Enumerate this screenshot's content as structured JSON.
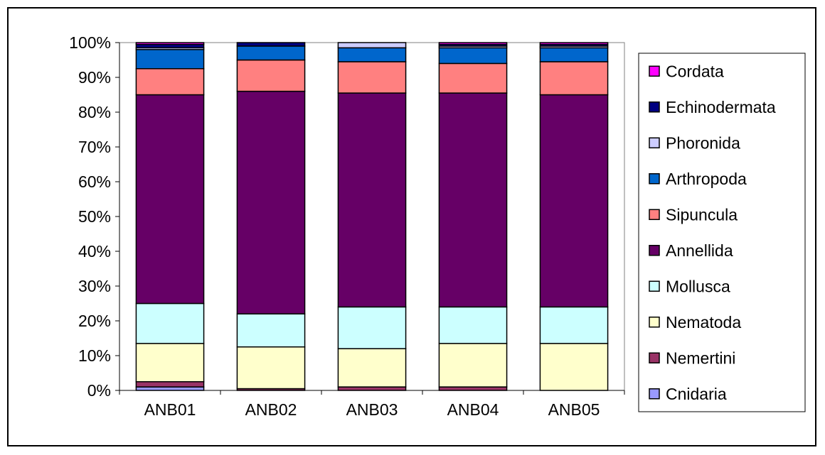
{
  "chart_data": {
    "type": "bar",
    "stacked": true,
    "percent": true,
    "categories": [
      "ANB01",
      "ANB02",
      "ANB03",
      "ANB04",
      "ANB05"
    ],
    "ylim": [
      0,
      100
    ],
    "yticks": [
      "0%",
      "10%",
      "20%",
      "30%",
      "40%",
      "50%",
      "60%",
      "70%",
      "80%",
      "90%",
      "100%"
    ],
    "grid": false,
    "legend_position": "right",
    "title": "",
    "xlabel": "",
    "ylabel": "",
    "series": [
      {
        "name": "Cnidaria",
        "color": "#9999FF",
        "values": [
          1.0,
          0.0,
          0.0,
          0.0,
          0.0
        ]
      },
      {
        "name": "Nemertini",
        "color": "#993366",
        "values": [
          1.5,
          0.5,
          1.0,
          1.0,
          0.0
        ]
      },
      {
        "name": "Nematoda",
        "color": "#FFFFCC",
        "values": [
          11.0,
          12.0,
          11.0,
          12.5,
          13.5
        ]
      },
      {
        "name": "Mollusca",
        "color": "#CCFFFF",
        "values": [
          11.5,
          9.5,
          12.0,
          10.5,
          10.5
        ]
      },
      {
        "name": "Annellida",
        "color": "#660066",
        "values": [
          60.0,
          64.0,
          61.5,
          61.5,
          61.0
        ]
      },
      {
        "name": "Sipuncula",
        "color": "#FF8080",
        "values": [
          7.5,
          9.0,
          9.0,
          8.5,
          9.5
        ]
      },
      {
        "name": "Arthropoda",
        "color": "#0066CC",
        "values": [
          5.5,
          4.0,
          4.0,
          4.5,
          4.0
        ]
      },
      {
        "name": "Phoronida",
        "color": "#CCCCFF",
        "values": [
          0.5,
          0.0,
          1.5,
          0.5,
          0.5
        ]
      },
      {
        "name": "Echinodermata",
        "color": "#000080",
        "values": [
          1.0,
          1.0,
          0.0,
          0.5,
          0.5
        ]
      },
      {
        "name": "Cordata",
        "color": "#FF00FF",
        "values": [
          0.5,
          0.0,
          0.0,
          0.5,
          0.5
        ]
      }
    ]
  }
}
